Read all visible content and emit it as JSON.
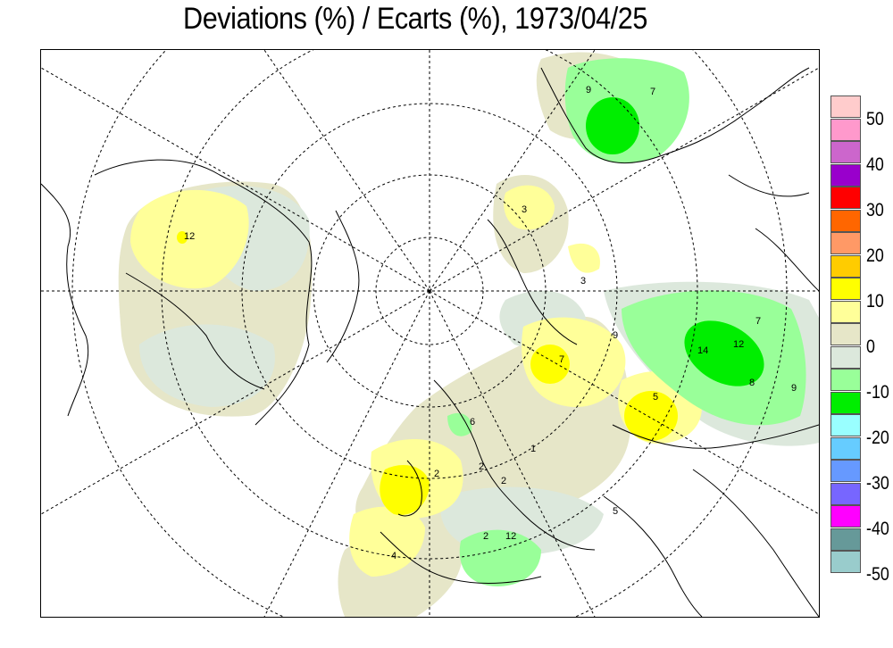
{
  "title": "Deviations (%) / Ecarts (%), 1973/04/25",
  "legend": {
    "colors": [
      "#ffcccc",
      "#ff99cc",
      "#cc66cc",
      "#9900cc",
      "#ff0000",
      "#ff6600",
      "#ff9966",
      "#ffcc00",
      "#ffff00",
      "#ffff99",
      "#e6e6c8",
      "#dce8dc",
      "#99ff99",
      "#00ee00",
      "#99ffff",
      "#66ccff",
      "#6699ff",
      "#7766ff",
      "#ff00ff",
      "#669999",
      "#99cccc"
    ],
    "labels": [
      "50",
      "40",
      "30",
      "20",
      "10",
      "0",
      "-10",
      "-20",
      "-30",
      "-40",
      "-50"
    ]
  },
  "contour_labels": [
    "12",
    "3",
    "3",
    "7",
    "9",
    "5",
    "14",
    "12",
    "8",
    "7",
    "9",
    "6",
    "2",
    "2",
    "2",
    "1",
    "12",
    "2",
    "9",
    "7",
    "4",
    "5"
  ]
}
